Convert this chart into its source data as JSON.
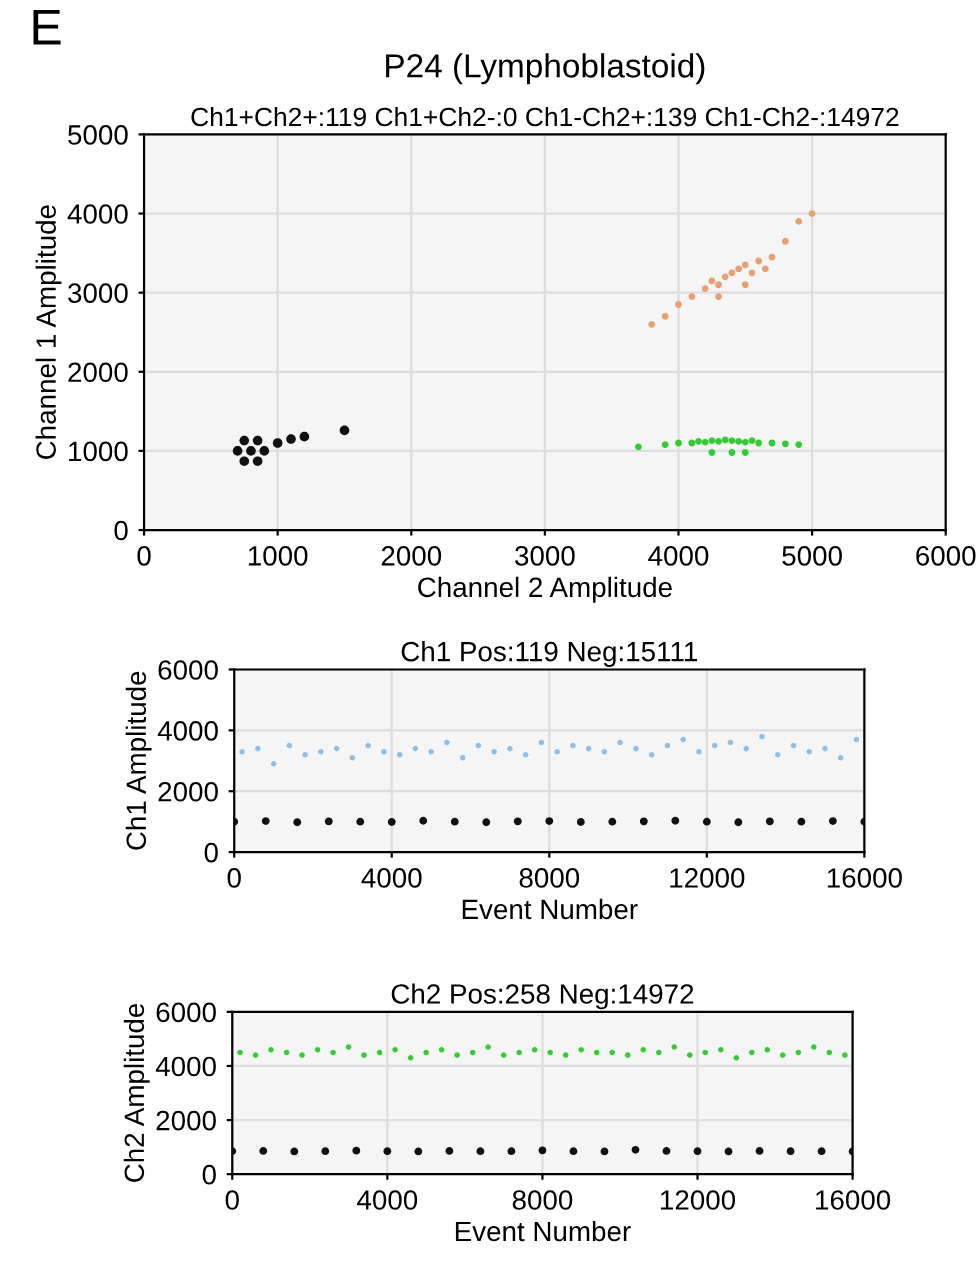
{
  "chart_data": [
    {
      "type": "scatter",
      "title": "P24 (Lymphoblastoid)",
      "subtitle": "Ch1+Ch2+:119 Ch1+Ch2-:0 Ch1-Ch2+:139 Ch1-Ch2-:14972",
      "xlabel": "Channel 2 Amplitude",
      "ylabel": "Channel 1 Amplitude",
      "annotations": [
        "E"
      ],
      "xlim": [
        0,
        6000
      ],
      "ylim": [
        0,
        5000
      ],
      "xticks": [
        0,
        1000,
        2000,
        3000,
        4000,
        5000,
        6000
      ],
      "yticks": [
        0,
        1000,
        2000,
        3000,
        4000,
        5000
      ],
      "grid": true,
      "legend": false,
      "marker": "circle",
      "series": [
        {
          "color": "#111111",
          "x": [
            700,
            800,
            900,
            750,
            850,
            750,
            850,
            1000,
            1100,
            1200,
            1500
          ],
          "values": [
            1000,
            1000,
            1000,
            1130,
            1130,
            870,
            870,
            1100,
            1150,
            1180,
            1260
          ]
        },
        {
          "color": "#e8a070",
          "x": [
            3800,
            3900,
            4000,
            4100,
            4200,
            4250,
            4300,
            4350,
            4400,
            4450,
            4500,
            4550,
            4600,
            4650,
            4700,
            4800,
            4900,
            5000,
            4300,
            4500
          ],
          "values": [
            2600,
            2700,
            2850,
            2950,
            3050,
            3150,
            3100,
            3200,
            3250,
            3300,
            3350,
            3250,
            3400,
            3300,
            3450,
            3650,
            3900,
            4000,
            2950,
            3100
          ]
        },
        {
          "color": "#33cc33",
          "x": [
            3700,
            3900,
            4000,
            4100,
            4150,
            4200,
            4250,
            4300,
            4350,
            4400,
            4450,
            4500,
            4550,
            4600,
            4700,
            4800,
            4900,
            4250,
            4400,
            4500
          ],
          "values": [
            1050,
            1080,
            1100,
            1100,
            1120,
            1110,
            1130,
            1120,
            1140,
            1130,
            1120,
            1110,
            1130,
            1100,
            1100,
            1090,
            1080,
            980,
            980,
            980
          ]
        }
      ]
    },
    {
      "type": "scatter",
      "title": "Ch1 Pos:119 Neg:15111",
      "xlabel": "Event Number",
      "ylabel": "Ch1 Amplitude",
      "xlim": [
        0,
        16000
      ],
      "ylim": [
        0,
        6000
      ],
      "xticks": [
        0,
        4000,
        8000,
        12000,
        16000
      ],
      "yticks": [
        0,
        2000,
        4000,
        6000
      ],
      "grid": true,
      "legend": false,
      "marker": "circle",
      "series": [
        {
          "color": "#8fbfe6",
          "x": [
            200,
            600,
            1000,
            1400,
            1800,
            2200,
            2600,
            3000,
            3400,
            3800,
            4200,
            4600,
            5000,
            5400,
            5800,
            6200,
            6600,
            7000,
            7400,
            7800,
            8200,
            8600,
            9000,
            9400,
            9800,
            10200,
            10600,
            11000,
            11400,
            11800,
            12200,
            12600,
            13000,
            13400,
            13800,
            14200,
            14600,
            15000,
            15400,
            15800
          ],
          "values": [
            3300,
            3400,
            2900,
            3500,
            3200,
            3300,
            3400,
            3100,
            3500,
            3300,
            3200,
            3400,
            3300,
            3600,
            3100,
            3500,
            3300,
            3400,
            3200,
            3600,
            3300,
            3500,
            3400,
            3300,
            3600,
            3400,
            3200,
            3500,
            3700,
            3300,
            3500,
            3600,
            3400,
            3800,
            3200,
            3500,
            3300,
            3400,
            3100,
            3700
          ]
        },
        {
          "color": "#111111",
          "x": [
            0,
            800,
            1600,
            2400,
            3200,
            4000,
            4800,
            5600,
            6400,
            7200,
            8000,
            8800,
            9600,
            10400,
            11200,
            12000,
            12800,
            13600,
            14400,
            15200,
            16000
          ],
          "values": [
            1000,
            1020,
            980,
            1010,
            1000,
            990,
            1030,
            1000,
            980,
            1010,
            1020,
            990,
            1000,
            1010,
            1030,
            1000,
            980,
            1010,
            1000,
            1020,
            1000
          ]
        }
      ]
    },
    {
      "type": "scatter",
      "title": "Ch2 Pos:258 Neg:14972",
      "xlabel": "Event Number",
      "ylabel": "Ch2 Amplitude",
      "xlim": [
        0,
        16000
      ],
      "ylim": [
        0,
        6000
      ],
      "xticks": [
        0,
        4000,
        8000,
        12000,
        16000
      ],
      "yticks": [
        0,
        2000,
        4000,
        6000
      ],
      "grid": true,
      "legend": false,
      "marker": "circle",
      "series": [
        {
          "color": "#33cc33",
          "x": [
            200,
            600,
            1000,
            1400,
            1800,
            2200,
            2600,
            3000,
            3400,
            3800,
            4200,
            4600,
            5000,
            5400,
            5800,
            6200,
            6600,
            7000,
            7400,
            7800,
            8200,
            8600,
            9000,
            9400,
            9800,
            10200,
            10600,
            11000,
            11400,
            11800,
            12200,
            12600,
            13000,
            13400,
            13800,
            14200,
            14600,
            15000,
            15400,
            15800
          ],
          "values": [
            4500,
            4400,
            4600,
            4500,
            4400,
            4600,
            4500,
            4700,
            4400,
            4500,
            4600,
            4300,
            4500,
            4600,
            4400,
            4500,
            4700,
            4400,
            4500,
            4600,
            4500,
            4400,
            4600,
            4500,
            4500,
            4400,
            4600,
            4500,
            4700,
            4400,
            4500,
            4600,
            4300,
            4500,
            4600,
            4400,
            4500,
            4700,
            4500,
            4400
          ]
        },
        {
          "color": "#111111",
          "x": [
            0,
            800,
            1600,
            2400,
            3200,
            4000,
            4800,
            5600,
            6400,
            7200,
            8000,
            8800,
            9600,
            10400,
            11200,
            12000,
            12800,
            13600,
            14400,
            15200,
            16000
          ],
          "values": [
            850,
            860,
            840,
            850,
            870,
            850,
            840,
            860,
            850,
            850,
            880,
            850,
            840,
            900,
            860,
            850,
            840,
            860,
            850,
            850,
            840
          ]
        }
      ]
    }
  ]
}
